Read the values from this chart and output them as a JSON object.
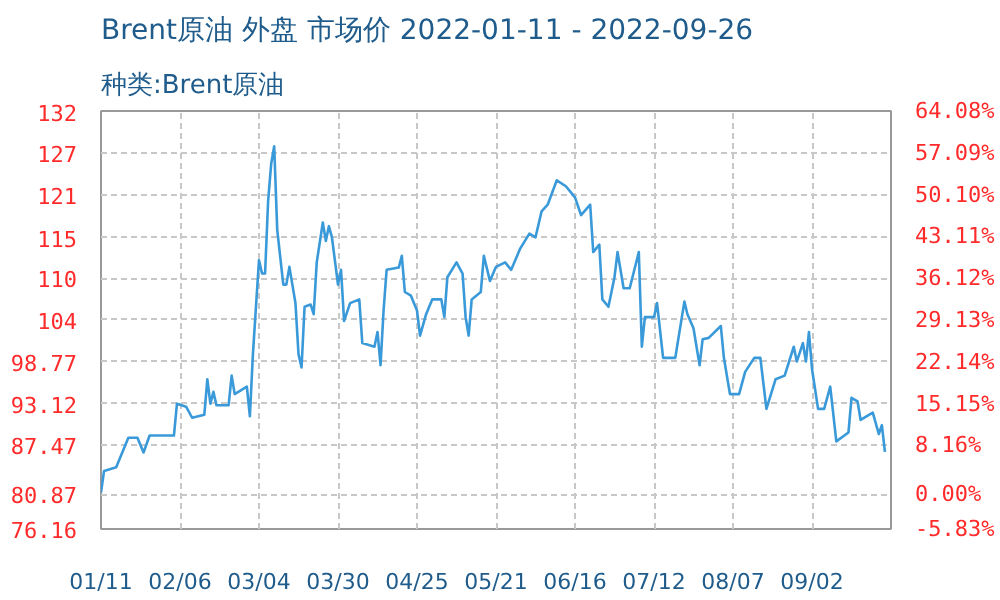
{
  "chart_data": {
    "type": "line",
    "title": "Brent原油 外盘 市场价 2022-01-11 - 2022-09-26",
    "subtitle": "种类:Brent原油",
    "x": [
      "2022-01-11",
      "2022-01-12",
      "2022-01-16",
      "2022-01-20",
      "2022-01-23",
      "2022-01-25",
      "2022-01-27",
      "2022-02-04",
      "2022-02-05",
      "2022-02-08",
      "2022-02-10",
      "2022-02-14",
      "2022-02-15",
      "2022-02-16",
      "2022-02-17",
      "2022-02-18",
      "2022-02-22",
      "2022-02-23",
      "2022-02-24",
      "2022-02-28",
      "2022-03-01",
      "2022-03-02",
      "2022-03-03",
      "2022-03-04",
      "2022-03-05",
      "2022-03-06",
      "2022-03-07",
      "2022-03-08",
      "2022-03-09",
      "2022-03-10",
      "2022-03-12",
      "2022-03-13",
      "2022-03-14",
      "2022-03-16",
      "2022-03-17",
      "2022-03-18",
      "2022-03-19",
      "2022-03-21",
      "2022-03-22",
      "2022-03-23",
      "2022-03-25",
      "2022-03-26",
      "2022-03-27",
      "2022-03-28",
      "2022-03-30",
      "2022-03-31",
      "2022-04-01",
      "2022-04-03",
      "2022-04-06",
      "2022-04-07",
      "2022-04-11",
      "2022-04-12",
      "2022-04-13",
      "2022-04-14",
      "2022-04-15",
      "2022-04-19",
      "2022-04-20",
      "2022-04-21",
      "2022-04-23",
      "2022-04-25",
      "2022-04-26",
      "2022-04-28",
      "2022-04-30",
      "2022-05-03",
      "2022-05-04",
      "2022-05-05",
      "2022-05-08",
      "2022-05-10",
      "2022-05-11",
      "2022-05-12",
      "2022-05-13",
      "2022-05-16",
      "2022-05-17",
      "2022-05-19",
      "2022-05-21",
      "2022-05-24",
      "2022-05-26",
      "2022-05-29",
      "2022-06-01",
      "2022-06-03",
      "2022-06-05",
      "2022-06-07",
      "2022-06-10",
      "2022-06-13",
      "2022-06-16",
      "2022-06-18",
      "2022-06-21",
      "2022-06-22",
      "2022-06-24",
      "2022-06-25",
      "2022-06-27",
      "2022-06-29",
      "2022-06-30",
      "2022-07-02",
      "2022-07-04",
      "2022-07-07",
      "2022-07-08",
      "2022-07-09",
      "2022-07-12",
      "2022-07-13",
      "2022-07-15",
      "2022-07-19",
      "2022-07-22",
      "2022-07-23",
      "2022-07-25",
      "2022-07-27",
      "2022-07-28",
      "2022-07-30",
      "2022-08-03",
      "2022-08-04",
      "2022-08-06",
      "2022-08-09",
      "2022-08-11",
      "2022-08-14",
      "2022-08-16",
      "2022-08-18",
      "2022-08-21",
      "2022-08-24",
      "2022-08-27",
      "2022-08-28",
      "2022-08-30",
      "2022-08-31",
      "2022-09-01",
      "2022-09-02",
      "2022-09-04",
      "2022-09-06",
      "2022-09-08",
      "2022-09-10",
      "2022-09-14",
      "2022-09-15",
      "2022-09-17",
      "2022-09-18",
      "2022-09-22",
      "2022-09-24",
      "2022-09-25",
      "2022-09-26"
    ],
    "series": [
      {
        "color": "#3a9ad9",
        "values": [
          81.1,
          84.0,
          84.5,
          88.5,
          88.5,
          86.5,
          88.8,
          88.8,
          93.1,
          92.7,
          91.2,
          91.6,
          96.4,
          93.1,
          94.7,
          92.9,
          92.9,
          96.9,
          94.4,
          95.4,
          91.4,
          99.8,
          106.2,
          112.5,
          110.7,
          110.7,
          120.5,
          125.5,
          127.9,
          116.6,
          109.2,
          109.2,
          111.6,
          106.7,
          99.8,
          98.0,
          106.2,
          106.5,
          105.2,
          112.2,
          117.6,
          115.1,
          117.1,
          115.6,
          109.2,
          111.2,
          104.3,
          106.7,
          107.2,
          101.3,
          100.8,
          102.8,
          98.3,
          105.7,
          111.2,
          111.5,
          113.1,
          108.2,
          107.7,
          105.7,
          102.3,
          105.2,
          107.2,
          107.2,
          104.8,
          110.2,
          112.2,
          110.7,
          104.8,
          102.3,
          107.2,
          108.2,
          113.1,
          109.7,
          111.6,
          112.2,
          111.2,
          114.1,
          116.1,
          115.6,
          119.1,
          120.0,
          123.3,
          122.5,
          121.0,
          118.6,
          120.0,
          113.6,
          114.6,
          107.2,
          106.2,
          110.2,
          113.6,
          108.7,
          108.7,
          113.6,
          100.8,
          104.8,
          104.8,
          106.7,
          99.3,
          99.3,
          106.9,
          105.2,
          103.3,
          98.3,
          101.8,
          102.0,
          103.6,
          99.3,
          94.4,
          94.4,
          97.4,
          99.3,
          99.3,
          92.4,
          96.4,
          96.9,
          100.8,
          98.8,
          101.3,
          98.8,
          102.8,
          97.8,
          92.4,
          92.4,
          95.4,
          88.0,
          89.2,
          93.9,
          93.4,
          90.9,
          91.9,
          89.0,
          90.2,
          86.6
        ]
      }
    ],
    "xlim": [
      "2022-01-11",
      "2022-09-28"
    ],
    "xticks": [
      {
        "value": "2022-01-11",
        "label": "01/11"
      },
      {
        "value": "2022-02-06",
        "label": "02/06"
      },
      {
        "value": "2022-03-04",
        "label": "03/04"
      },
      {
        "value": "2022-03-30",
        "label": "03/30"
      },
      {
        "value": "2022-04-25",
        "label": "04/25"
      },
      {
        "value": "2022-05-21",
        "label": "05/21"
      },
      {
        "value": "2022-06-16",
        "label": "06/16"
      },
      {
        "value": "2022-07-12",
        "label": "07/12"
      },
      {
        "value": "2022-08-07",
        "label": "08/07"
      },
      {
        "value": "2022-09-02",
        "label": "09/02"
      }
    ],
    "ylim": [
      76.16,
      132.67
    ],
    "yticks": [
      76.16,
      80.87,
      87.47,
      93.12,
      98.77,
      {
        "value": 104.42,
        "label": "104"
      },
      {
        "value": 110.07,
        "label": "110"
      },
      {
        "value": 115.49,
        "label": "115"
      },
      {
        "value": 121.37,
        "label": "121"
      },
      {
        "value": 127.02,
        "label": "127"
      },
      {
        "value": 132.49,
        "label": "132"
      }
    ],
    "y2lim": [
      -5.83,
      64.08
    ],
    "y2ticks": [
      {
        "value": -5.83,
        "label": "-5.83%"
      },
      {
        "value": 0,
        "label": "0.00%"
      },
      {
        "value": 8.16,
        "label": "8.16%"
      },
      {
        "value": 15.15,
        "label": "15.15%"
      },
      {
        "value": 22.14,
        "label": "22.14%"
      },
      {
        "value": 29.13,
        "label": "29.13%"
      },
      {
        "value": 36.12,
        "label": "36.12%"
      },
      {
        "value": 43.11,
        "label": "43.11%"
      },
      {
        "value": 50.1,
        "label": "50.10%"
      },
      {
        "value": 57.09,
        "label": "57.09%"
      },
      {
        "value": 64.08,
        "label": "64.08%"
      }
    ],
    "grid": true
  }
}
